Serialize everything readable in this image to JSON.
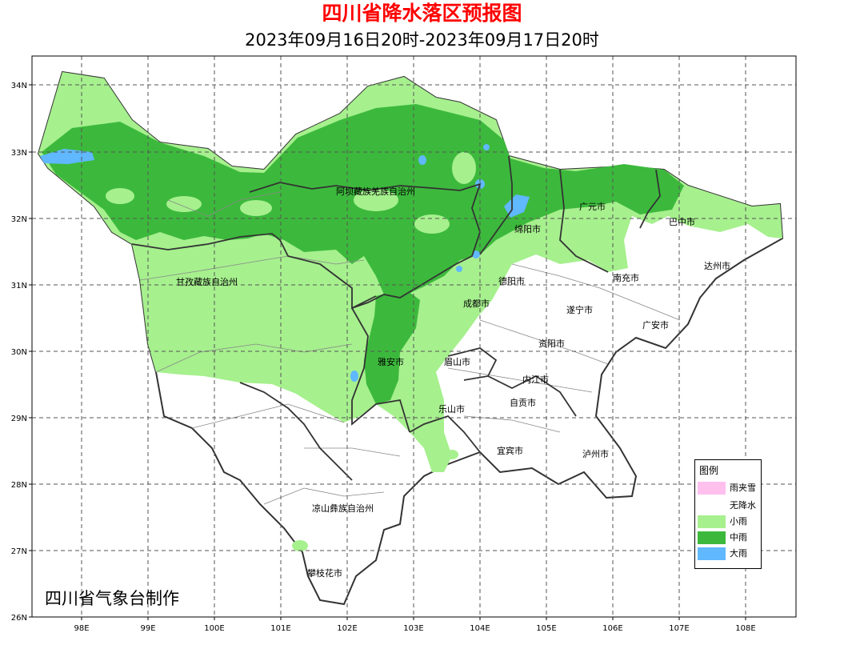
{
  "header": {
    "title": "四川省降水落区预报图",
    "subtitle": "2023年09月16日20时-2023年09月17日20时"
  },
  "footer": {
    "agency": "四川省气象台制作"
  },
  "axes": {
    "y_ticks": [
      "34N",
      "33N",
      "32N",
      "31N",
      "30N",
      "29N",
      "28N",
      "27N",
      "26N"
    ],
    "x_ticks": [
      "98E",
      "99E",
      "100E",
      "101E",
      "102E",
      "103E",
      "104E",
      "105E",
      "106E",
      "107E",
      "108E"
    ]
  },
  "regions": [
    "阿坝藏族羌族自治州",
    "甘孜藏族自治州",
    "凉山彝族自治州",
    "广元市",
    "巴中市",
    "绵阳市",
    "达州市",
    "德阳市",
    "南充市",
    "成都市",
    "遂宁市",
    "广安市",
    "资阳市",
    "雅安市",
    "眉山市",
    "内江市",
    "自贡市",
    "乐山市",
    "宜宾市",
    "泸州市",
    "攀枝花市"
  ],
  "legend": {
    "title": "图例",
    "items": [
      {
        "label": "雨夹雪",
        "color": "#ffc0ee"
      },
      {
        "label": "无降水",
        "color": "#ffffff"
      },
      {
        "label": "小雨",
        "color": "#a6f08e"
      },
      {
        "label": "中雨",
        "color": "#3cb93c"
      },
      {
        "label": "大雨",
        "color": "#60b8ff"
      }
    ]
  }
}
